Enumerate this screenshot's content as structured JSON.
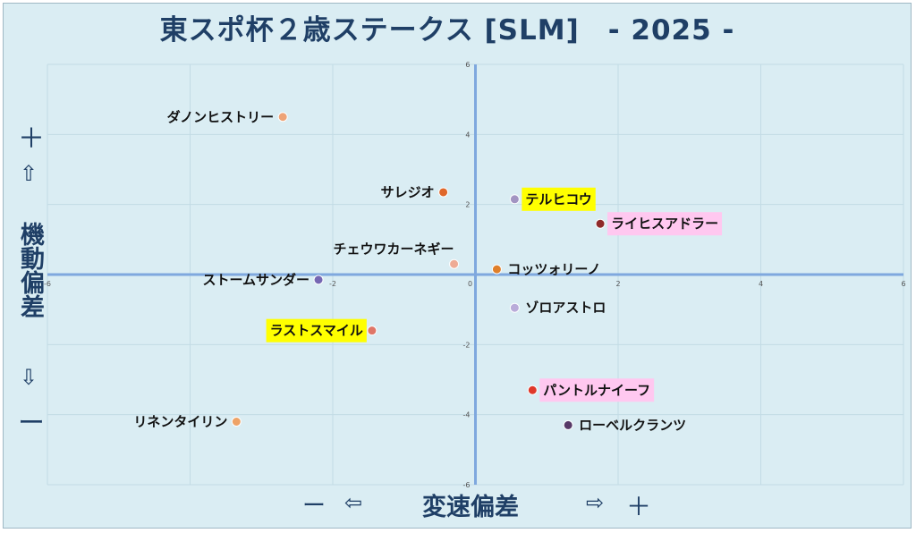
{
  "title": "東スポ杯２歳ステークス [SLM]　- 2025 -",
  "y_axis": {
    "plus": "＋",
    "up_arrow": "⇧",
    "label": "機動偏差",
    "down_arrow": "⇩",
    "minus": "ー"
  },
  "x_axis": {
    "minus": "ー",
    "left_arrow": "⇦",
    "label": "変速偏差",
    "right_arrow": "⇨",
    "plus": "＋"
  },
  "chart_data": {
    "type": "scatter",
    "title": "東スポ杯２歳ステークス [SLM]　- 2025 -",
    "xlabel": "変速偏差",
    "ylabel": "機動偏差",
    "xlim": [
      -6,
      6
    ],
    "ylim": [
      -6,
      6
    ],
    "xticks": [
      -6,
      -4,
      -2,
      0,
      2,
      4,
      6
    ],
    "yticks": [
      -6,
      -4,
      -2,
      0,
      2,
      4,
      6
    ],
    "xtick_labels": [
      "-6",
      "",
      "-2",
      "0",
      "2",
      "4",
      "6"
    ],
    "ytick_labels": [
      "-6",
      "-4",
      "-2",
      "0",
      "2",
      "4",
      "6"
    ],
    "grid": true,
    "points": [
      {
        "name": "ダノンヒストリー",
        "x": -2.7,
        "y": 4.5,
        "color": "#f0a070",
        "highlight": "",
        "label_side": "left"
      },
      {
        "name": "サレジオ",
        "x": -0.45,
        "y": 2.35,
        "color": "#e06020",
        "highlight": "",
        "label_side": "left"
      },
      {
        "name": "テルヒコウ",
        "x": 0.55,
        "y": 2.15,
        "color": "#a090c0",
        "highlight": "#ffff00",
        "label_side": "right"
      },
      {
        "name": "ライヒスアドラー",
        "x": 1.75,
        "y": 1.45,
        "color": "#8b2020",
        "highlight": "#ffc8f0",
        "label_side": "right"
      },
      {
        "name": "チェウワカーネギー",
        "x": -0.3,
        "y": 0.3,
        "color": "#f0a890",
        "highlight": "",
        "label_side": "above-left"
      },
      {
        "name": "コッツォリーノ",
        "x": 0.3,
        "y": 0.15,
        "color": "#e07a20",
        "highlight": "",
        "label_side": "right"
      },
      {
        "name": "ストームサンダー",
        "x": -2.2,
        "y": -0.15,
        "color": "#7060b0",
        "highlight": "",
        "label_side": "left"
      },
      {
        "name": "ゾロアストロ",
        "x": 0.55,
        "y": -0.95,
        "color": "#b8a8d8",
        "highlight": "",
        "label_side": "right"
      },
      {
        "name": "ラストスマイル",
        "x": -1.45,
        "y": -1.6,
        "color": "#e07060",
        "highlight": "#ffff00",
        "label_side": "left"
      },
      {
        "name": "パントルナイーフ",
        "x": 0.8,
        "y": -3.3,
        "color": "#e03020",
        "highlight": "#ffc8f0",
        "label_side": "right"
      },
      {
        "name": "ローベルクランツ",
        "x": 1.3,
        "y": -4.3,
        "color": "#503060",
        "highlight": "",
        "label_side": "right"
      },
      {
        "name": "リネンタイリン",
        "x": -3.35,
        "y": -4.2,
        "color": "#f0a060",
        "highlight": "",
        "label_side": "left"
      }
    ]
  }
}
